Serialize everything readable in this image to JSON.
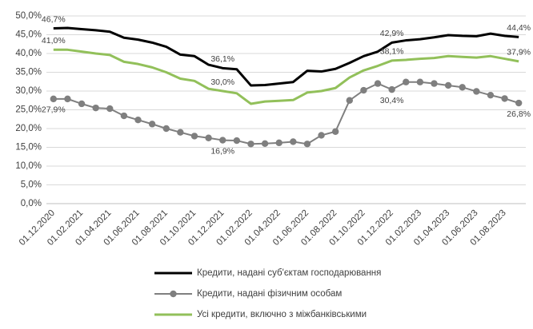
{
  "chart_data": {
    "type": "line",
    "categories": [
      "01.12.2020",
      null,
      "01.02.2021",
      null,
      "01.04.2021",
      null,
      "01.06.2021",
      null,
      "01.08.2021",
      null,
      "01.10.2021",
      null,
      "01.12.2021",
      null,
      "01.02.2022",
      null,
      "01.04.2022",
      null,
      "01.06.2022",
      null,
      "01.08.2022",
      null,
      "01.10.2022",
      null,
      "01.12.2022",
      null,
      "01.02.2023",
      null,
      "01.04.2023",
      null,
      "01.06.2023",
      null,
      "01.08.2023",
      null
    ],
    "ylim": [
      0,
      50
    ],
    "yticks": [
      {
        "value": 0,
        "label": "0,0%"
      },
      {
        "value": 5,
        "label": "5,0%"
      },
      {
        "value": 10,
        "label": "10,0%"
      },
      {
        "value": 15,
        "label": "15,0%"
      },
      {
        "value": 20,
        "label": "20,0%"
      },
      {
        "value": 25,
        "label": "25,0%"
      },
      {
        "value": 30,
        "label": "30,0%"
      },
      {
        "value": 35,
        "label": "35,0%"
      },
      {
        "value": 40,
        "label": "40,0%"
      },
      {
        "value": 45,
        "label": "45,0%"
      },
      {
        "value": 50,
        "label": "50,0%"
      }
    ],
    "grid": true,
    "legend": "bottom",
    "series": [
      {
        "name": "Кредити, надані суб'єктам господарювання",
        "color": "#000000",
        "marker": false,
        "values": [
          46.7,
          46.8,
          46.5,
          46.2,
          45.8,
          44.2,
          43.7,
          42.9,
          41.8,
          39.7,
          39.3,
          37.0,
          36.1,
          35.8,
          31.5,
          31.6,
          32.0,
          32.4,
          35.4,
          35.2,
          35.9,
          37.5,
          39.3,
          40.5,
          42.9,
          43.5,
          43.8,
          44.3,
          44.9,
          44.7,
          44.6,
          45.3,
          44.7,
          44.4
        ],
        "value_labels": [
          "46,7%",
          null,
          null,
          null,
          null,
          null,
          null,
          null,
          null,
          null,
          null,
          null,
          "36,1%",
          null,
          null,
          null,
          null,
          null,
          null,
          null,
          null,
          null,
          null,
          null,
          "42,9%",
          null,
          null,
          null,
          null,
          null,
          null,
          null,
          null,
          "44,4%"
        ]
      },
      {
        "name": "Кредити, надані фізичним особам",
        "color": "#7f7f7f",
        "marker": true,
        "values": [
          27.9,
          27.9,
          26.6,
          25.5,
          25.3,
          23.4,
          22.3,
          21.2,
          20.0,
          19.0,
          18.0,
          17.5,
          16.9,
          16.8,
          15.9,
          16.0,
          16.2,
          16.5,
          15.9,
          18.2,
          19.2,
          27.5,
          30.2,
          32.0,
          30.4,
          32.4,
          32.4,
          32.0,
          31.5,
          31.0,
          29.9,
          28.9,
          28.0,
          26.8
        ],
        "value_labels": [
          "27,9%",
          null,
          null,
          null,
          null,
          null,
          null,
          null,
          null,
          null,
          null,
          null,
          "16,9%",
          null,
          null,
          null,
          null,
          null,
          null,
          null,
          null,
          null,
          null,
          null,
          "30,4%",
          null,
          null,
          null,
          null,
          null,
          null,
          null,
          null,
          "26,8%"
        ]
      },
      {
        "name": "Усі кредити, включно з міжбанківськими",
        "color": "#92c05a",
        "marker": false,
        "values": [
          41.0,
          41.0,
          40.5,
          40.0,
          39.6,
          37.8,
          37.2,
          36.3,
          35.0,
          33.3,
          32.7,
          30.6,
          30.0,
          29.4,
          26.6,
          27.2,
          27.4,
          27.6,
          29.6,
          30.0,
          30.8,
          33.6,
          35.5,
          36.7,
          38.1,
          38.3,
          38.6,
          38.8,
          39.3,
          39.1,
          38.9,
          39.3,
          38.6,
          37.9
        ],
        "value_labels": [
          "41,0%",
          null,
          null,
          null,
          null,
          null,
          null,
          null,
          null,
          null,
          null,
          null,
          "30,0%",
          null,
          null,
          null,
          null,
          null,
          null,
          null,
          null,
          null,
          null,
          null,
          "38,1%",
          null,
          null,
          null,
          null,
          null,
          null,
          null,
          null,
          "37,9%"
        ]
      }
    ]
  }
}
